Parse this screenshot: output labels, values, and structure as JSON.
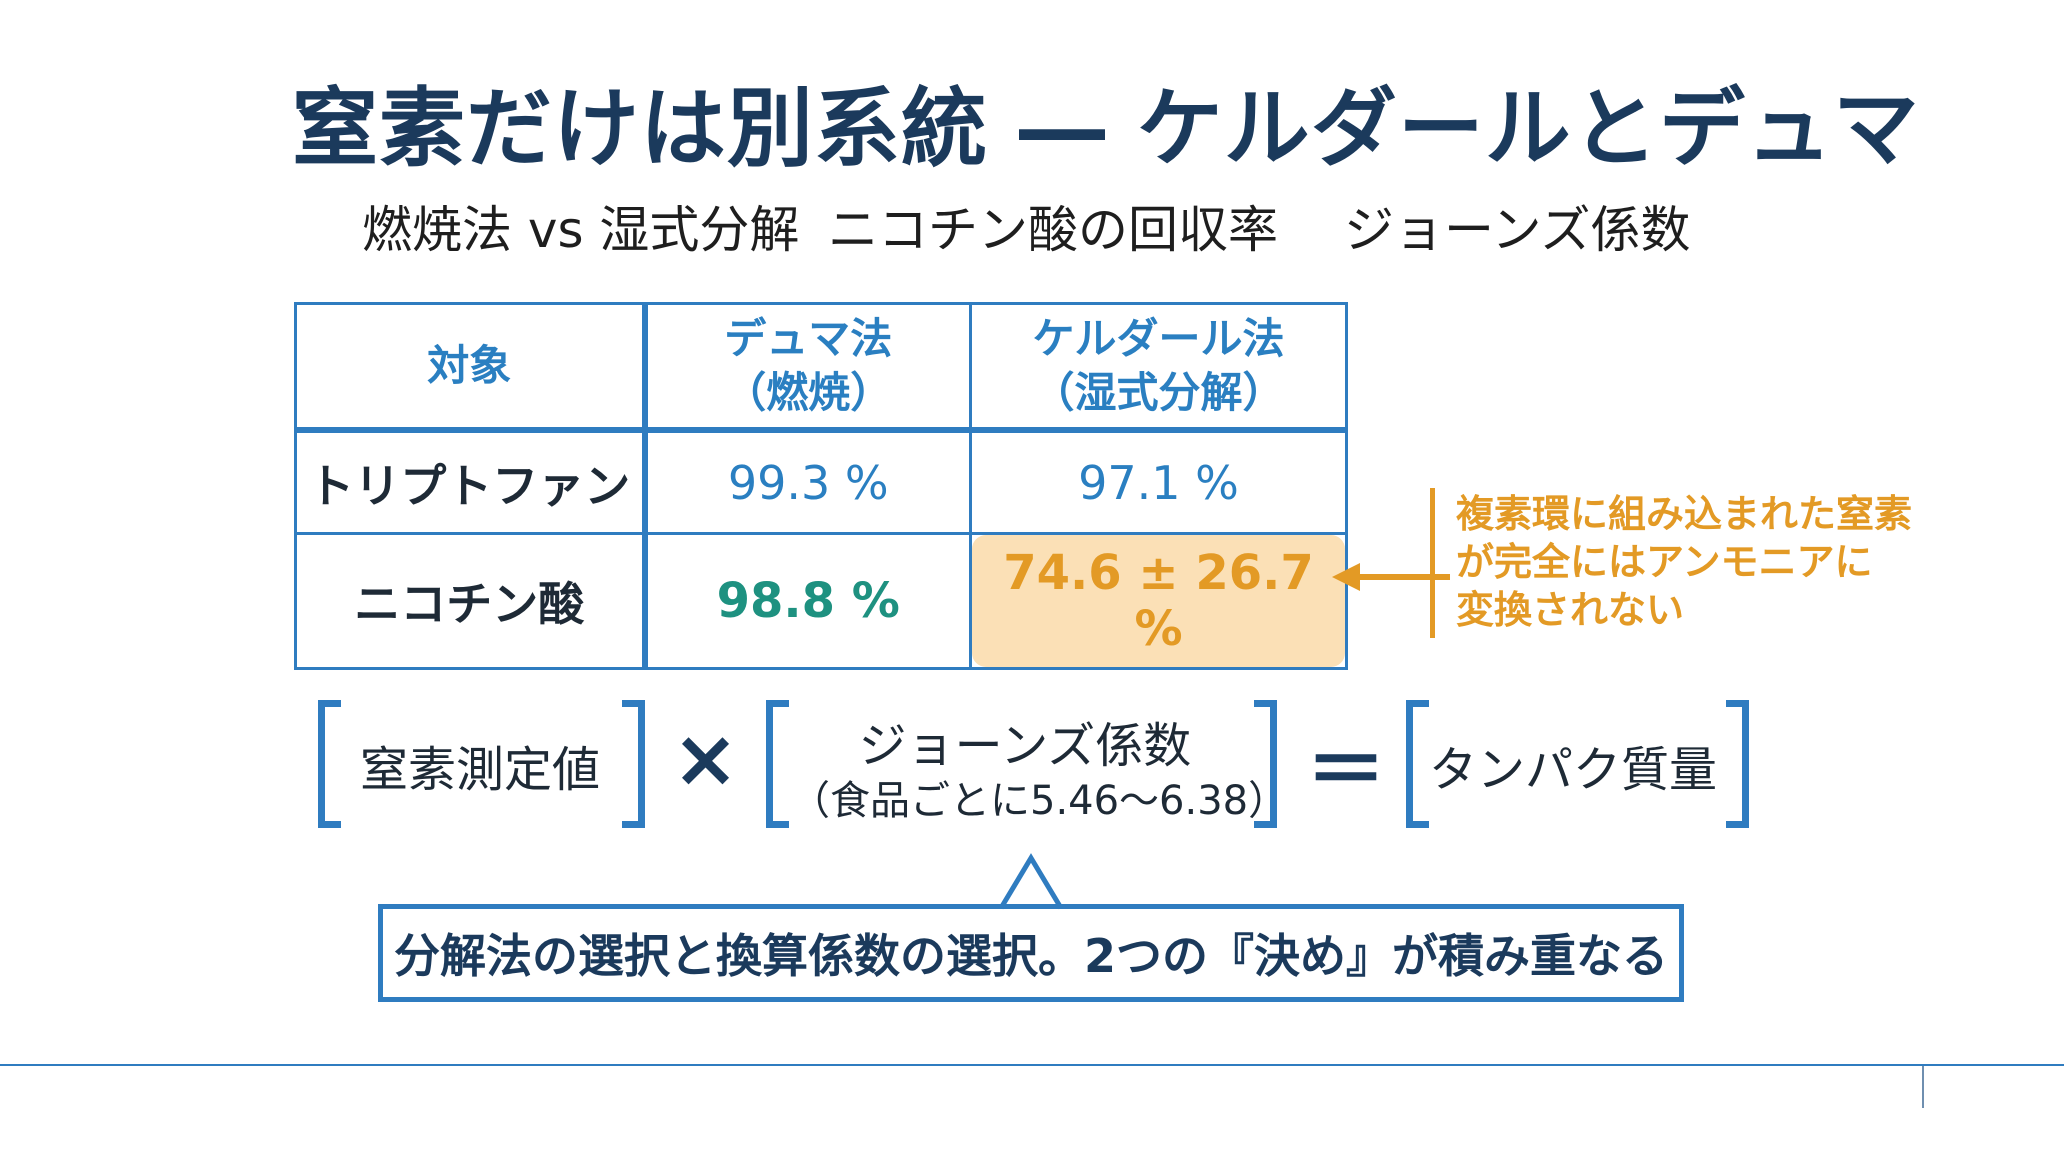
{
  "title": "窒素だけは別系統 ― ケルダールとデュマ",
  "subtitle": {
    "item1": "燃焼法 vs 湿式分解",
    "item2": "ニコチン酸の回収率",
    "item3": "ジョーンズ係数"
  },
  "table": {
    "headers": {
      "target": "対象",
      "dumas_line1": "デュマ法",
      "dumas_line2": "（燃焼）",
      "kjeldahl_line1": "ケルダール法",
      "kjeldahl_line2": "（湿式分解）"
    },
    "rows": [
      {
        "label": "トリプトファン",
        "dumas": "99.3 %",
        "kjeldahl": "97.1 %"
      },
      {
        "label": "ニコチン酸",
        "dumas": "98.8 %",
        "kjeldahl": "74.6 ± 26.7 %"
      }
    ]
  },
  "annotation": {
    "line1": "複素環に組み込まれた窒素",
    "line2": "が完全にはアンモニアに",
    "line3": "変換されない"
  },
  "formula": {
    "term1": "窒素測定値",
    "times": "×",
    "term2_line1": "ジョーンズ係数",
    "term2_line2": "（食品ごとに5.46〜6.38）",
    "equals": "＝",
    "term3": "タンパク質量"
  },
  "callout": "分解法の選択と換算係数の選択。2つの『決め』が積み重なる",
  "colors": {
    "primary": "#2f7cc0",
    "title": "#1b3a5c",
    "highlight_text": "#e39a25",
    "highlight_bg": "#fbe0b6",
    "green": "#1e9180"
  }
}
